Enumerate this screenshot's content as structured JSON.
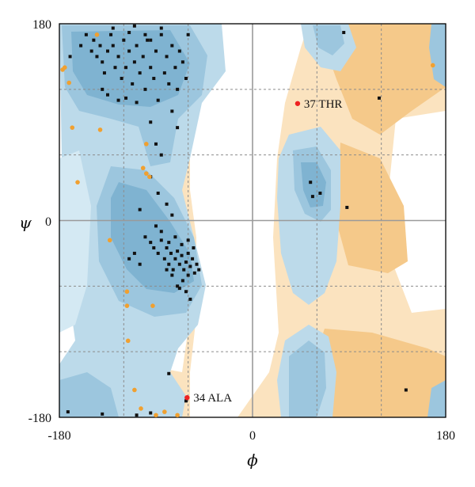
{
  "chart_data": {
    "type": "scatter",
    "title": "",
    "xlabel": "ϕ",
    "ylabel": "ψ",
    "xlim": [
      -180,
      180
    ],
    "ylim": [
      -180,
      180
    ],
    "xticks": [
      "-180",
      "0",
      "180"
    ],
    "yticks": [
      "180",
      "0",
      "-180"
    ],
    "grid": "dotted",
    "colors": {
      "favored_dark": "#7fb3d1",
      "favored_light": "#bcdaea",
      "allowed_orange": "#f5c98a",
      "allowed_light_orange": "#fbe3bf",
      "core_point": "#111111",
      "allowed_point": "#f0a030",
      "outlier_point": "#ee2222",
      "axis_line": "#9a9a9a"
    },
    "series": [
      {
        "role": "core",
        "color": "#111111",
        "points": [
          [
            -170,
            150
          ],
          [
            -160,
            160
          ],
          [
            -155,
            170
          ],
          [
            -150,
            155
          ],
          [
            -148,
            165
          ],
          [
            -145,
            150
          ],
          [
            -142,
            160
          ],
          [
            -140,
            145
          ],
          [
            -138,
            135
          ],
          [
            -135,
            155
          ],
          [
            -132,
            170
          ],
          [
            -130,
            160
          ],
          [
            -128,
            140
          ],
          [
            -125,
            150
          ],
          [
            -122,
            130
          ],
          [
            -120,
            165
          ],
          [
            -118,
            140
          ],
          [
            -115,
            155
          ],
          [
            -112,
            125
          ],
          [
            -110,
            145
          ],
          [
            -108,
            160
          ],
          [
            -105,
            135
          ],
          [
            -102,
            150
          ],
          [
            -100,
            120
          ],
          [
            -98,
            165
          ],
          [
            -95,
            140
          ],
          [
            -92,
            130
          ],
          [
            -90,
            155
          ],
          [
            -88,
            110
          ],
          [
            -85,
            170
          ],
          [
            -82,
            135
          ],
          [
            -80,
            150
          ],
          [
            -78,
            125
          ],
          [
            -75,
            160
          ],
          [
            -72,
            140
          ],
          [
            -70,
            120
          ],
          [
            -68,
            155
          ],
          [
            -65,
            145
          ],
          [
            -62,
            130
          ],
          [
            -60,
            170
          ],
          [
            -140,
            120
          ],
          [
            -135,
            115
          ],
          [
            -125,
            110
          ],
          [
            -118,
            112
          ],
          [
            -108,
            108
          ],
          [
            -95,
            90
          ],
          [
            -90,
            70
          ],
          [
            -85,
            60
          ],
          [
            -75,
            100
          ],
          [
            -70,
            85
          ],
          [
            -95,
            40
          ],
          [
            -88,
            25
          ],
          [
            -80,
            15
          ],
          [
            -75,
            5
          ],
          [
            -105,
            10
          ],
          [
            -100,
            -15
          ],
          [
            -95,
            -20
          ],
          [
            -92,
            -25
          ],
          [
            -88,
            -30
          ],
          [
            -85,
            -18
          ],
          [
            -82,
            -35
          ],
          [
            -80,
            -25
          ],
          [
            -78,
            -40
          ],
          [
            -76,
            -30
          ],
          [
            -74,
            -45
          ],
          [
            -72,
            -35
          ],
          [
            -70,
            -28
          ],
          [
            -68,
            -40
          ],
          [
            -66,
            -32
          ],
          [
            -64,
            -45
          ],
          [
            -62,
            -38
          ],
          [
            -60,
            -30
          ],
          [
            -58,
            -42
          ],
          [
            -56,
            -35
          ],
          [
            -54,
            -48
          ],
          [
            -52,
            -40
          ],
          [
            -60,
            -50
          ],
          [
            -65,
            -55
          ],
          [
            -70,
            -60
          ],
          [
            -75,
            -50
          ],
          [
            -80,
            -45
          ],
          [
            -85,
            -10
          ],
          [
            -90,
            -5
          ],
          [
            -78,
            -20
          ],
          [
            -72,
            -15
          ],
          [
            -66,
            -22
          ],
          [
            -60,
            -18
          ],
          [
            -55,
            -25
          ],
          [
            -50,
            -45
          ],
          [
            -68,
            -62
          ],
          [
            -62,
            -65
          ],
          [
            -58,
            -72
          ],
          [
            -110,
            -30
          ],
          [
            -115,
            -35
          ],
          [
            -105,
            -40
          ],
          [
            -78,
            -140
          ],
          [
            -62,
            -165
          ],
          [
            -95,
            -176
          ],
          [
            -140,
            -177
          ],
          [
            -108,
            -178
          ],
          [
            -172,
            -175
          ],
          [
            -100,
            170
          ],
          [
            -95,
            165
          ],
          [
            -115,
            172
          ],
          [
            -130,
            176
          ],
          [
            -85,
            176
          ],
          [
            -110,
            178
          ],
          [
            54,
            35
          ],
          [
            56,
            22
          ],
          [
            63,
            25
          ],
          [
            88,
            12
          ],
          [
            118,
            112
          ],
          [
            143,
            -155
          ],
          [
            85,
            172
          ]
        ]
      },
      {
        "role": "allowed",
        "color": "#f0a030",
        "points": [
          [
            -177,
            138
          ],
          [
            -171,
            126
          ],
          [
            -168,
            85
          ],
          [
            -142,
            83
          ],
          [
            -99,
            70
          ],
          [
            -102,
            48
          ],
          [
            -99,
            43
          ],
          [
            -96,
            40
          ],
          [
            -163,
            35
          ],
          [
            -133,
            -18
          ],
          [
            -117,
            -65
          ],
          [
            -117,
            -78
          ],
          [
            -93,
            -78
          ],
          [
            -116,
            -110
          ],
          [
            -110,
            -155
          ],
          [
            -104,
            -172
          ],
          [
            -82,
            -175
          ],
          [
            -90,
            -178
          ],
          [
            -70,
            -178
          ],
          [
            -175,
            140
          ],
          [
            168,
            142
          ],
          [
            -145,
            170
          ]
        ]
      },
      {
        "role": "outlier",
        "color": "#ee2222",
        "points": [
          {
            "x": 42,
            "y": 107,
            "label": "37 THR"
          },
          {
            "x": -61,
            "y": -162,
            "label": "34 ALA"
          }
        ]
      }
    ]
  }
}
